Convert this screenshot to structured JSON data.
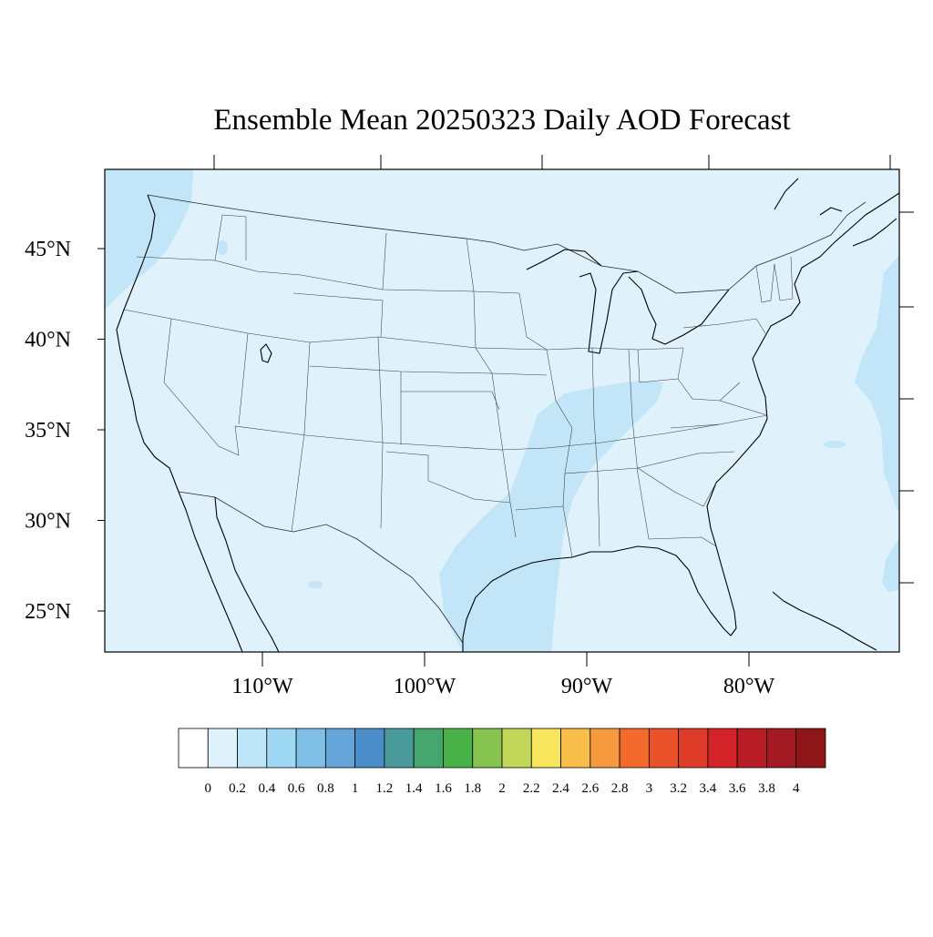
{
  "title": "Ensemble Mean 20250323 Daily AOD Forecast",
  "map": {
    "lon_range": [
      -119,
      -70
    ],
    "lat_range": [
      22.5,
      49.5
    ],
    "lat_ticks": [
      {
        "value": 45,
        "label": "45°N"
      },
      {
        "value": 40,
        "label": "40°N"
      },
      {
        "value": 35,
        "label": "35°N"
      },
      {
        "value": 30,
        "label": "30°N"
      },
      {
        "value": 25,
        "label": "25°N"
      }
    ],
    "lon_ticks": [
      {
        "value": -110,
        "label": "110°W"
      },
      {
        "value": -100,
        "label": "100°W"
      },
      {
        "value": -90,
        "label": "90°W"
      },
      {
        "value": -80,
        "label": "80°W"
      }
    ],
    "background_aod_class": "0.2-0.4",
    "colors": {
      "background": "#dff2fb",
      "elevated": "#c2e6f8"
    }
  },
  "colorbar": {
    "levels": [
      "0",
      "0.2",
      "0.4",
      "0.6",
      "0.8",
      "1",
      "1.2",
      "1.4",
      "1.6",
      "1.8",
      "2",
      "2.2",
      "2.4",
      "2.6",
      "2.8",
      "3",
      "3.2",
      "3.4",
      "3.6",
      "3.8",
      "4"
    ],
    "colors": [
      "#ffffff",
      "#dff2fb",
      "#bde5f8",
      "#9fd8f3",
      "#80bfe6",
      "#66a5da",
      "#4a8dc8",
      "#4a9a9b",
      "#45a76e",
      "#48b249",
      "#86c44f",
      "#c2d65a",
      "#f6e55d",
      "#f7be4a",
      "#f69a3f",
      "#f46a2d",
      "#ea5229",
      "#de3c28",
      "#d32228",
      "#b81c25",
      "#a31a22",
      "#8e1619"
    ]
  }
}
